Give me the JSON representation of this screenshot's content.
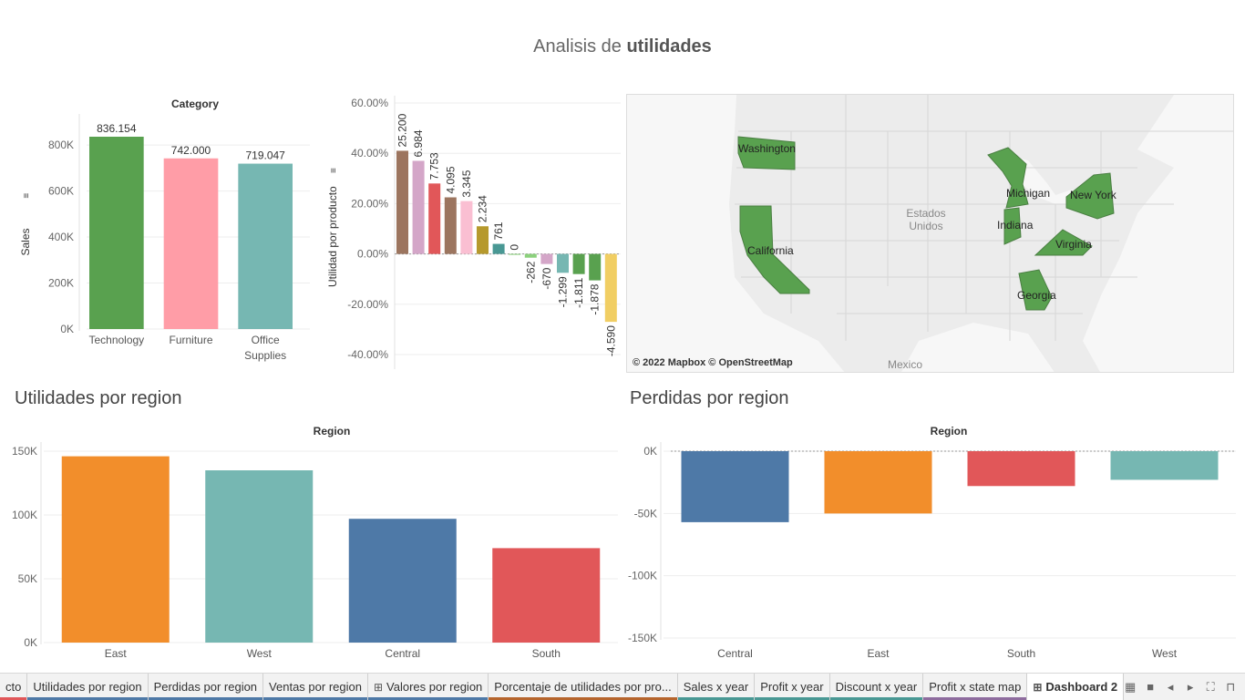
{
  "dashboard": {
    "title_prefix": "Analisis de ",
    "title_bold": "utilidades"
  },
  "colors": {
    "green": "#59a14f",
    "pink": "#ff9da7",
    "teal": "#76b7b2",
    "orange": "#f28e2b",
    "blue": "#4e79a7",
    "red": "#e15759",
    "brown": "#9c755f",
    "lilac": "#d4a6c8",
    "gold": "#b6992d",
    "darkteal": "#499894",
    "yellow": "#f1ce63",
    "lightgreen": "#8cd17d",
    "lightpink": "#fabfd2"
  },
  "chart_data": [
    {
      "type": "bar",
      "title": "Category",
      "ylabel": "Sales",
      "categories": [
        "Technology",
        "Furniture",
        "Office Supplies"
      ],
      "category_lines": [
        [
          "Technology"
        ],
        [
          "Furniture"
        ],
        [
          "Office",
          "Supplies"
        ]
      ],
      "values": [
        836154,
        742000,
        719047
      ],
      "labels": [
        "836.154",
        "742.000",
        "719.047"
      ],
      "colors": [
        "#59a14f",
        "#ff9da7",
        "#76b7b2"
      ],
      "yticks": [
        0,
        200000,
        400000,
        600000,
        800000
      ],
      "ytick_labels": [
        "0K",
        "200K",
        "400K",
        "600K",
        "800K"
      ],
      "ylim": [
        0,
        836154
      ]
    },
    {
      "type": "bar",
      "title": "",
      "ylabel": "Utilidad por producto",
      "values": [
        0.41,
        0.37,
        0.28,
        0.225,
        0.21,
        0.11,
        0.04,
        0.0,
        -0.015,
        -0.04,
        -0.075,
        -0.08,
        -0.105,
        -0.27
      ],
      "labels": [
        "25.200",
        "6.984",
        "7.753",
        "4.095",
        "3.345",
        "2.234",
        "761",
        "0",
        "-262",
        "-670",
        "-1.299",
        "-1.811",
        "-1.878",
        "-4.590"
      ],
      "colors": [
        "#9c755f",
        "#d4a6c8",
        "#e15759",
        "#9c755f",
        "#fabfd2",
        "#b6992d",
        "#499894",
        "#8cd17d",
        "#8cd17d",
        "#d4a6c8",
        "#76b7b2",
        "#59a14f",
        "#59a14f",
        "#f1ce63"
      ],
      "yticks": [
        -0.4,
        -0.2,
        0,
        0.2,
        0.4,
        0.6
      ],
      "ytick_labels": [
        "-40.00%",
        "-20.00%",
        "0.00%",
        "20.00%",
        "40.00%",
        "60.00%"
      ],
      "ylim": [
        -0.4,
        0.6
      ]
    },
    {
      "type": "bar",
      "title": "Region",
      "section_title": "Utilidades por region",
      "categories": [
        "East",
        "West",
        "Central",
        "South"
      ],
      "values": [
        146000,
        135000,
        97000,
        74000
      ],
      "colors": [
        "#f28e2b",
        "#76b7b2",
        "#4e79a7",
        "#e15759"
      ],
      "yticks": [
        0,
        50000,
        100000,
        150000
      ],
      "ytick_labels": [
        "0K",
        "50K",
        "100K",
        "150K"
      ],
      "ylim": [
        0,
        150000
      ]
    },
    {
      "type": "bar",
      "title": "Region",
      "section_title": "Perdidas por region",
      "categories": [
        "Central",
        "East",
        "South",
        "West"
      ],
      "values": [
        -57000,
        -50000,
        -28000,
        -23000
      ],
      "colors": [
        "#4e79a7",
        "#f28e2b",
        "#e15759",
        "#76b7b2"
      ],
      "yticks": [
        0,
        -50000,
        -100000,
        -150000
      ],
      "ytick_labels": [
        "0K",
        "-50K",
        "-100K",
        "-150K"
      ],
      "ylim": [
        -150000,
        0
      ]
    }
  ],
  "map": {
    "states": [
      "Washington",
      "California",
      "Michigan",
      "New York",
      "Indiana",
      "Virginia",
      "Georgia"
    ],
    "country_label": "Estados Unidos",
    "country_label_lines": [
      "Estados",
      "Unidos"
    ],
    "neighbor_label": "Mexico",
    "attribution": "© 2022 Mapbox © OpenStreetMap",
    "highlight_color": "#59a14f"
  },
  "tabs": [
    {
      "label": "cto",
      "stripe": "#e15759",
      "icon": ""
    },
    {
      "label": "Utilidades por region",
      "stripe": "#4e79a7",
      "icon": ""
    },
    {
      "label": "Perdidas por region",
      "stripe": "#4e79a7",
      "icon": ""
    },
    {
      "label": "Ventas por region",
      "stripe": "#4e79a7",
      "icon": ""
    },
    {
      "label": "Valores por region",
      "stripe": "#4e79a7",
      "icon": "⊞"
    },
    {
      "label": "Porcentaje de utilidades por pro...",
      "stripe": "#b6652d",
      "icon": ""
    },
    {
      "label": "Sales x year",
      "stripe": "#499894",
      "icon": ""
    },
    {
      "label": "Profit x year",
      "stripe": "#499894",
      "icon": ""
    },
    {
      "label": "Discount x year",
      "stripe": "#499894",
      "icon": ""
    },
    {
      "label": "Profit x state map",
      "stripe": "#8e6c9e",
      "icon": ""
    },
    {
      "label": "Dashboard 2",
      "stripe": "",
      "icon": "⊞",
      "active": true
    }
  ],
  "tab_controls": [
    "grid-view-icon",
    "film-strip-icon",
    "prev-icon",
    "next-icon",
    "fit-icon",
    "presentation-icon"
  ]
}
